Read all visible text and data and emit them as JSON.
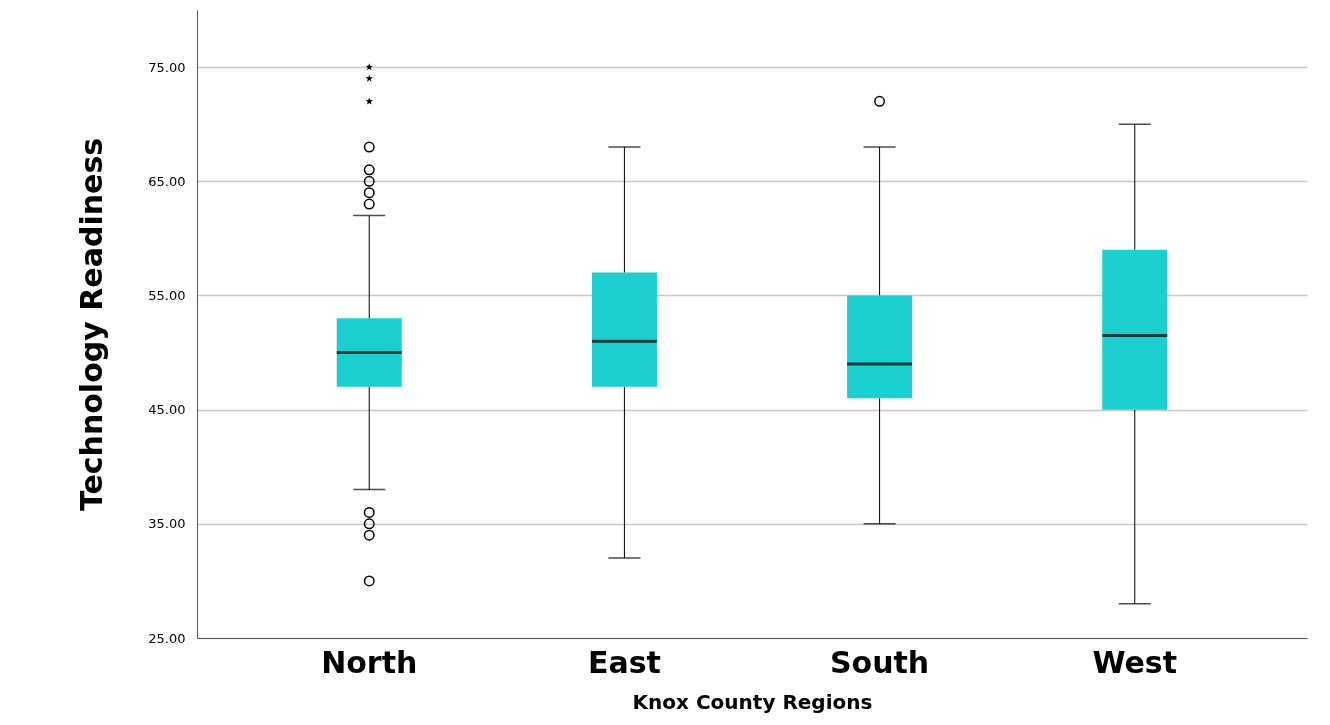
{
  "chart_data": {
    "type": "box",
    "xlabel": "Knox County Regions",
    "ylabel": "Technology Readiness",
    "categories": [
      "North",
      "East",
      "South",
      "West"
    ],
    "boxes": [
      {
        "low": 38,
        "q1": 47,
        "median": 50,
        "q3": 53,
        "high": 62,
        "outliers": [
          68,
          66,
          65,
          64,
          63,
          36,
          35,
          34,
          30
        ]
      },
      {
        "low": 32,
        "q1": 47,
        "median": 51,
        "q3": 57,
        "high": 68
      },
      {
        "low": 35,
        "q1": 46,
        "median": 49,
        "q3": 55,
        "high": 68,
        "outliers": [
          72
        ]
      },
      {
        "low": 28,
        "q1": 45,
        "median": 51.5,
        "q3": 59,
        "high": 70
      }
    ],
    "color": "#1ccfcf",
    "marker": "circle",
    "grid": "y",
    "series": [
      {
        "type": "scatter",
        "marker": "star",
        "color": "#000000",
        "x": [
          "North",
          "North",
          "North"
        ],
        "values": [
          75,
          74,
          72
        ]
      }
    ],
    "ylim": [
      25,
      80
    ],
    "yticks": [
      {
        "value": 25,
        "label": "25.00"
      },
      {
        "value": 35,
        "label": "35.00"
      },
      {
        "value": 45,
        "label": "45.00"
      },
      {
        "value": 55,
        "label": "55.00"
      },
      {
        "value": 65,
        "label": "65.00"
      },
      {
        "value": 75,
        "label": "75.00"
      }
    ]
  }
}
